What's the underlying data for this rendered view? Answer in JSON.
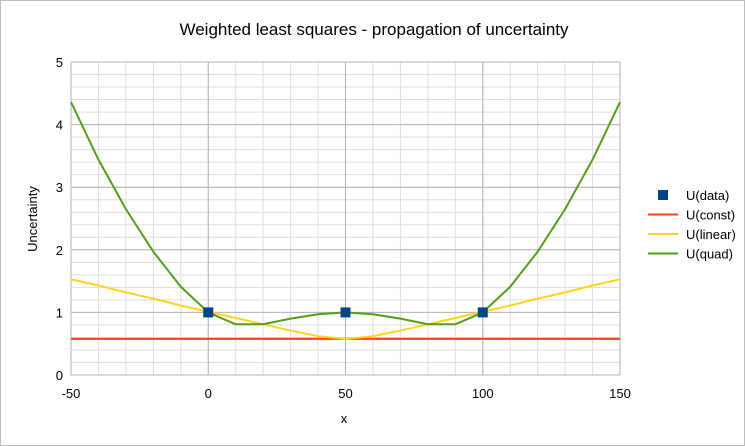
{
  "chart_data": {
    "type": "line",
    "title": "Weighted least squares - propagation of uncertainty",
    "xlabel": "x",
    "ylabel": "Uncertainty",
    "xlim": [
      -50,
      150
    ],
    "ylim": [
      0,
      5
    ],
    "xticks": [
      -50,
      0,
      50,
      100,
      150
    ],
    "yticks": [
      0,
      1,
      2,
      3,
      4,
      5
    ],
    "grid": true,
    "legend_position": "right",
    "series": [
      {
        "name": "U(data)",
        "kind": "markers",
        "marker": "square",
        "color": "#004586",
        "x": [
          0,
          50,
          100
        ],
        "y": [
          1.0,
          1.0,
          1.0
        ]
      },
      {
        "name": "U(const)",
        "kind": "line",
        "color": "#ff420e",
        "x": [
          -50,
          -40,
          -30,
          -20,
          -10,
          0,
          10,
          20,
          30,
          40,
          50,
          60,
          70,
          80,
          90,
          100,
          110,
          120,
          130,
          140,
          150
        ],
        "y": [
          0.577,
          0.577,
          0.577,
          0.577,
          0.577,
          0.577,
          0.577,
          0.577,
          0.577,
          0.577,
          0.577,
          0.577,
          0.577,
          0.577,
          0.577,
          0.577,
          0.577,
          0.577,
          0.577,
          0.577,
          0.577
        ]
      },
      {
        "name": "U(linear)",
        "kind": "line",
        "color": "#ffd320",
        "x": [
          -50,
          -40,
          -30,
          -20,
          -10,
          0,
          10,
          20,
          30,
          40,
          50,
          60,
          70,
          80,
          90,
          100,
          110,
          120,
          130,
          140,
          150
        ],
        "y": [
          1.53,
          1.43,
          1.32,
          1.22,
          1.11,
          1.01,
          0.91,
          0.81,
          0.71,
          0.62,
          0.577,
          0.62,
          0.71,
          0.81,
          0.91,
          1.01,
          1.11,
          1.22,
          1.32,
          1.43,
          1.53
        ]
      },
      {
        "name": "U(quad)",
        "kind": "line",
        "color": "#579d1c",
        "x": [
          -50,
          -40,
          -30,
          -20,
          -10,
          0,
          10,
          20,
          30,
          40,
          50,
          60,
          70,
          80,
          90,
          100,
          110,
          120,
          130,
          140,
          150
        ],
        "y": [
          4.36,
          3.44,
          2.65,
          1.97,
          1.41,
          1.0,
          0.81,
          0.81,
          0.9,
          0.97,
          1.0,
          0.97,
          0.9,
          0.81,
          0.81,
          1.0,
          1.41,
          1.97,
          2.65,
          3.44,
          4.36
        ]
      }
    ]
  }
}
